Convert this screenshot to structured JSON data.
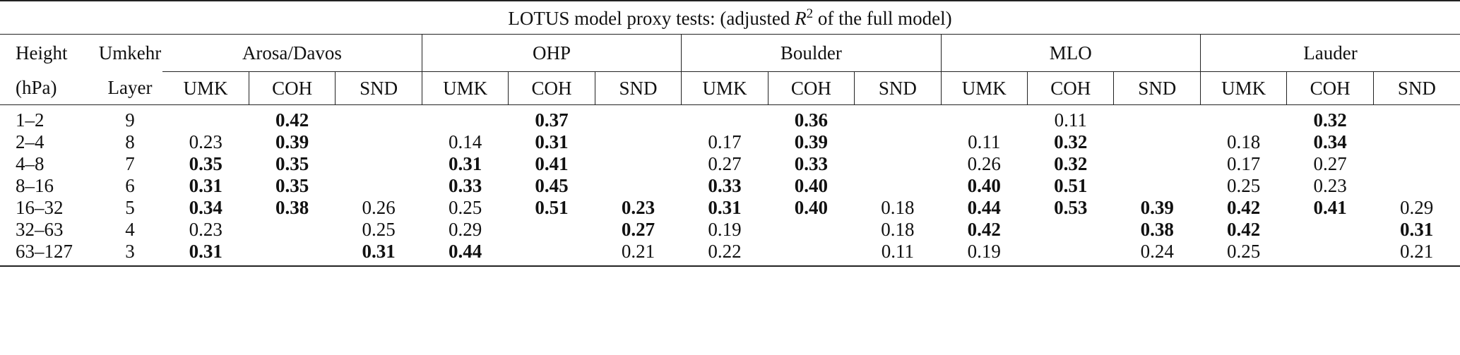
{
  "title": {
    "pre": "LOTUS model proxy tests: (adjusted ",
    "symbol": "R",
    "superscript": "2",
    "post": " of the full model)"
  },
  "header": {
    "height": "Height",
    "height_unit": "(hPa)",
    "umkehr": "Umkehr",
    "layer": "Layer",
    "groups": [
      "Arosa/Davos",
      "OHP",
      "Boulder",
      "MLO",
      "Lauder"
    ],
    "subcolumns": [
      "UMK",
      "COH",
      "SND"
    ]
  },
  "rows": [
    {
      "height": "1–2",
      "layer": "9",
      "values": [
        null,
        "0.42",
        null,
        null,
        "0.37",
        null,
        null,
        "0.36",
        null,
        null,
        "0.11",
        null,
        null,
        "0.32",
        null
      ]
    },
    {
      "height": "2–4",
      "layer": "8",
      "values": [
        "0.23",
        "0.39",
        null,
        "0.14",
        "0.31",
        null,
        "0.17",
        "0.39",
        null,
        "0.11",
        "0.32",
        null,
        "0.18",
        "0.34",
        null
      ]
    },
    {
      "height": "4–8",
      "layer": "7",
      "values": [
        "0.35",
        "0.35",
        null,
        "0.31",
        "0.41",
        null,
        "0.27",
        "0.33",
        null,
        "0.26",
        "0.32",
        null,
        "0.17",
        "0.27",
        null
      ]
    },
    {
      "height": "8–16",
      "layer": "6",
      "values": [
        "0.31",
        "0.35",
        null,
        "0.33",
        "0.45",
        null,
        "0.33",
        "0.40",
        null,
        "0.40",
        "0.51",
        null,
        "0.25",
        "0.23",
        null
      ]
    },
    {
      "height": "16–32",
      "layer": "5",
      "values": [
        "0.34",
        "0.38",
        "0.26",
        "0.25",
        "0.51",
        "0.23",
        "0.31",
        "0.40",
        "0.18",
        "0.44",
        "0.53",
        "0.39",
        "0.42",
        "0.41",
        "0.29"
      ]
    },
    {
      "height": "32–63",
      "layer": "4",
      "values": [
        "0.23",
        null,
        "0.25",
        "0.29",
        null,
        "0.27",
        "0.19",
        null,
        "0.18",
        "0.42",
        null,
        "0.38",
        "0.42",
        null,
        "0.31"
      ]
    },
    {
      "height": "63–127",
      "layer": "3",
      "values": [
        "0.31",
        null,
        "0.31",
        "0.44",
        null,
        "0.21",
        "0.22",
        null,
        "0.11",
        "0.19",
        null,
        "0.24",
        "0.25",
        null,
        "0.21"
      ]
    }
  ]
}
